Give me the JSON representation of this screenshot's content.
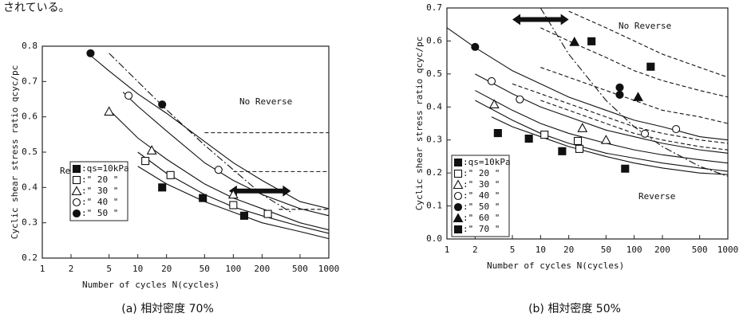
{
  "page_text": "されている。",
  "chart_data": [
    {
      "type": "scatter",
      "caption": "(a) 相対密度 70%",
      "xlabel": "Number of cycles  N(cycles)",
      "ylabel": "Cyclic shear stress ratio  qcyc/pc",
      "xscale": "log",
      "xlim": [
        1,
        1000
      ],
      "xticks": [
        1,
        2,
        5,
        10,
        20,
        50,
        100,
        200,
        500,
        1000
      ],
      "ylim": [
        0.2,
        0.8
      ],
      "yticks": [
        0.2,
        0.3,
        0.4,
        0.5,
        0.6,
        0.7,
        0.8
      ],
      "annotations": [
        "No Reverse",
        "Reverse"
      ],
      "series": [
        {
          "name": ":qs=10kPa",
          "marker": "half-square",
          "x": [
            18,
            48,
            130
          ],
          "values": [
            0.4,
            0.37,
            0.32
          ]
        },
        {
          "name": ":\" 20 \"",
          "marker": "square",
          "x": [
            12,
            22,
            100,
            230
          ],
          "values": [
            0.475,
            0.435,
            0.35,
            0.325
          ]
        },
        {
          "name": ":\" 30 \"",
          "marker": "triangle",
          "x": [
            5,
            14,
            100
          ],
          "values": [
            0.615,
            0.505,
            0.38
          ]
        },
        {
          "name": ":\" 40 \"",
          "marker": "circle",
          "x": [
            8,
            70
          ],
          "values": [
            0.66,
            0.45
          ]
        },
        {
          "name": ":\" 50 \"",
          "marker": "filled-circle",
          "x": [
            3.2,
            18
          ],
          "values": [
            0.78,
            0.635
          ]
        }
      ],
      "curves": [
        {
          "style": "solid",
          "x": [
            3,
            5,
            10,
            20,
            50,
            100,
            200,
            500,
            1000
          ],
          "y": [
            0.78,
            0.73,
            0.665,
            0.61,
            0.53,
            0.47,
            0.42,
            0.36,
            0.34
          ]
        },
        {
          "style": "solid",
          "x": [
            7,
            10,
            20,
            50,
            100,
            200,
            500,
            1000
          ],
          "y": [
            0.67,
            0.63,
            0.56,
            0.47,
            0.42,
            0.38,
            0.34,
            0.32
          ]
        },
        {
          "style": "solid",
          "x": [
            5,
            10,
            20,
            50,
            100,
            200,
            500,
            1000
          ],
          "y": [
            0.62,
            0.54,
            0.48,
            0.41,
            0.37,
            0.34,
            0.3,
            0.28
          ]
        },
        {
          "style": "solid",
          "x": [
            10,
            20,
            50,
            100,
            200,
            500,
            1000
          ],
          "y": [
            0.5,
            0.44,
            0.38,
            0.345,
            0.32,
            0.29,
            0.27
          ]
        },
        {
          "style": "solid",
          "x": [
            10,
            20,
            50,
            100,
            200,
            500,
            1000
          ],
          "y": [
            0.46,
            0.41,
            0.36,
            0.33,
            0.3,
            0.275,
            0.255
          ]
        },
        {
          "style": "dashdot",
          "x": [
            5,
            10,
            20,
            50,
            100,
            200,
            400
          ],
          "y": [
            0.78,
            0.7,
            0.62,
            0.52,
            0.45,
            0.38,
            0.33
          ]
        },
        {
          "style": "dashed",
          "x": [
            50,
            1000
          ],
          "y": [
            0.555,
            0.555
          ]
        },
        {
          "style": "dashed",
          "x": [
            100,
            1000
          ],
          "y": [
            0.445,
            0.445
          ]
        },
        {
          "style": "dashed",
          "x": [
            300,
            1000
          ],
          "y": [
            0.338,
            0.338
          ]
        }
      ],
      "arrows": [
        {
          "x": [
            90,
            400
          ],
          "y": 0.39
        }
      ]
    },
    {
      "type": "scatter",
      "caption": "(b) 相対密度 50%",
      "xlabel": "Number of cycles  N(cycles)",
      "ylabel": "Cyclic shear stress ratio  qcyc/pc",
      "xscale": "log",
      "xlim": [
        1,
        1000
      ],
      "xticks": [
        1,
        2,
        5,
        10,
        20,
        50,
        100,
        200,
        500,
        1000
      ],
      "ylim": [
        0,
        0.7
      ],
      "yticks": [
        {
          "value": 0,
          "label": "0.0"
        },
        0.1,
        0.2,
        0.3,
        0.4,
        0.5,
        0.6,
        0.7
      ],
      "annotations": [
        "No Reverse",
        "Reverse"
      ],
      "series": [
        {
          "name": ":qs=10kPa",
          "marker": "half-square",
          "x": [
            3.5,
            7.5,
            17,
            80
          ],
          "values": [
            0.321,
            0.304,
            0.266,
            0.213
          ]
        },
        {
          "name": ":\" 20 \"",
          "marker": "square",
          "x": [
            11,
            25,
            26
          ],
          "values": [
            0.316,
            0.297,
            0.273
          ]
        },
        {
          "name": ":\" 30 \"",
          "marker": "triangle",
          "x": [
            3.2,
            28,
            50
          ],
          "values": [
            0.408,
            0.336,
            0.3
          ]
        },
        {
          "name": ":\" 40 \"",
          "marker": "circle",
          "x": [
            3,
            6,
            130,
            280
          ],
          "values": [
            0.478,
            0.423,
            0.319,
            0.333
          ]
        },
        {
          "name": ":\" 50 \"",
          "marker": "filled-circle",
          "x": [
            2,
            70,
            70
          ],
          "values": [
            0.582,
            0.459,
            0.437
          ]
        },
        {
          "name": ":\" 60 \"",
          "marker": "filled-triangle",
          "x": [
            23,
            110
          ],
          "values": [
            0.597,
            0.43
          ]
        },
        {
          "name": ":\" 70 \"",
          "marker": "filled-square",
          "x": [
            35,
            150
          ],
          "values": [
            0.599,
            0.522
          ]
        }
      ],
      "curves": [
        {
          "style": "solid",
          "x": [
            1,
            2,
            5,
            10,
            20,
            50,
            100,
            200,
            500,
            1000
          ],
          "y": [
            0.64,
            0.58,
            0.51,
            0.47,
            0.43,
            0.39,
            0.36,
            0.34,
            0.31,
            0.3
          ]
        },
        {
          "style": "solid",
          "x": [
            2,
            5,
            10,
            20,
            50,
            100,
            200,
            500,
            1000
          ],
          "y": [
            0.5,
            0.44,
            0.4,
            0.37,
            0.33,
            0.31,
            0.29,
            0.27,
            0.26
          ]
        },
        {
          "style": "solid",
          "x": [
            2,
            5,
            10,
            20,
            50,
            100,
            200,
            500,
            1000
          ],
          "y": [
            0.45,
            0.39,
            0.35,
            0.32,
            0.29,
            0.27,
            0.255,
            0.24,
            0.23
          ]
        },
        {
          "style": "solid",
          "x": [
            2,
            5,
            10,
            20,
            50,
            100,
            200,
            500,
            1000
          ],
          "y": [
            0.42,
            0.36,
            0.32,
            0.29,
            0.26,
            0.245,
            0.23,
            0.215,
            0.205
          ]
        },
        {
          "style": "solid",
          "x": [
            3,
            5,
            10,
            20,
            50,
            100,
            200,
            500,
            1000
          ],
          "y": [
            0.37,
            0.34,
            0.31,
            0.28,
            0.25,
            0.23,
            0.215,
            0.2,
            0.195
          ]
        },
        {
          "style": "dashed",
          "x": [
            20,
            50,
            100,
            200,
            500,
            1000
          ],
          "y": [
            0.69,
            0.64,
            0.6,
            0.56,
            0.52,
            0.49
          ]
        },
        {
          "style": "dashed",
          "x": [
            10,
            20,
            50,
            100,
            200,
            500,
            1000
          ],
          "y": [
            0.64,
            0.6,
            0.55,
            0.51,
            0.48,
            0.45,
            0.43
          ]
        },
        {
          "style": "dashed",
          "x": [
            10,
            20,
            50,
            100,
            200,
            500,
            1000
          ],
          "y": [
            0.52,
            0.49,
            0.45,
            0.42,
            0.39,
            0.37,
            0.35
          ]
        },
        {
          "style": "dashed",
          "x": [
            5,
            10,
            20,
            50,
            100,
            200,
            500,
            1000
          ],
          "y": [
            0.47,
            0.44,
            0.41,
            0.37,
            0.34,
            0.32,
            0.3,
            0.29
          ]
        },
        {
          "style": "dashed",
          "x": [
            10,
            20,
            50,
            100,
            200,
            500,
            1000
          ],
          "y": [
            0.42,
            0.39,
            0.35,
            0.32,
            0.3,
            0.28,
            0.27
          ]
        },
        {
          "style": "dashdot",
          "x": [
            10,
            20,
            50,
            100,
            200,
            500,
            1000
          ],
          "y": [
            0.7,
            0.56,
            0.42,
            0.34,
            0.28,
            0.22,
            0.19
          ]
        }
      ],
      "arrows": [
        {
          "x": [
            5,
            20
          ],
          "y": 0.665
        }
      ]
    }
  ]
}
